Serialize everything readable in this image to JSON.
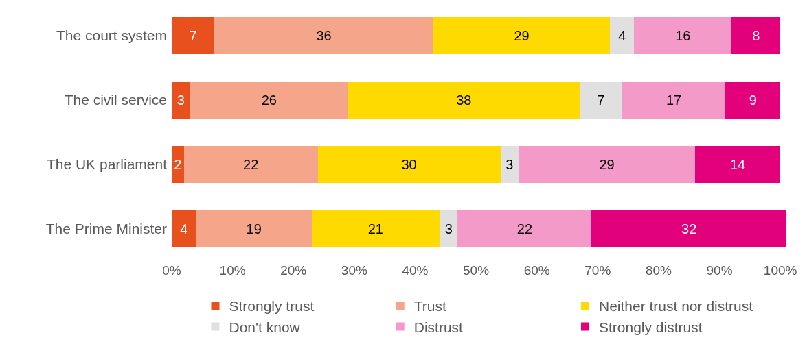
{
  "chart_data": {
    "type": "bar",
    "orientation": "horizontal",
    "stacked": true,
    "data_labels": true,
    "grid": false,
    "legend": "bottom",
    "categories": [
      "The court system",
      "The civil service",
      "The UK parliament",
      "The Prime Minister"
    ],
    "xlim": [
      0,
      101
    ],
    "xticks": [
      {
        "value": 0,
        "label": "0%"
      },
      {
        "value": 10,
        "label": "10%"
      },
      {
        "value": 20,
        "label": "20%"
      },
      {
        "value": 30,
        "label": "30%"
      },
      {
        "value": 40,
        "label": "40%"
      },
      {
        "value": 50,
        "label": "50%"
      },
      {
        "value": 60,
        "label": "60%"
      },
      {
        "value": 70,
        "label": "70%"
      },
      {
        "value": 80,
        "label": "80%"
      },
      {
        "value": 90,
        "label": "90%"
      },
      {
        "value": 100,
        "label": "100%"
      }
    ],
    "series": [
      {
        "name": "Strongly trust",
        "color": "#e8501e",
        "values": [
          7,
          3,
          2,
          4
        ]
      },
      {
        "name": "Trust",
        "color": "#f4a58a",
        "values": [
          36,
          26,
          22,
          19
        ]
      },
      {
        "name": "Neither trust nor distrust",
        "color": "#ffda00",
        "values": [
          29,
          38,
          30,
          21
        ]
      },
      {
        "name": "Don't know",
        "color": "#e0e0e0",
        "values": [
          4,
          7,
          3,
          3
        ]
      },
      {
        "name": "Distrust",
        "color": "#f39ac8",
        "values": [
          16,
          17,
          29,
          22
        ]
      },
      {
        "name": "Strongly distrust",
        "color": "#e3007b",
        "values": [
          8,
          9,
          14,
          32
        ]
      }
    ]
  }
}
